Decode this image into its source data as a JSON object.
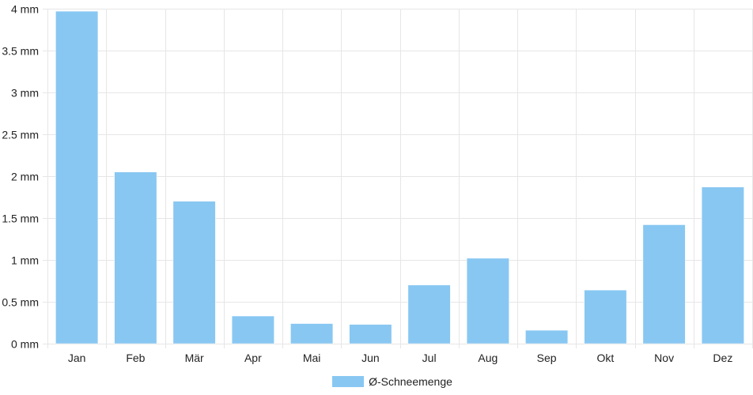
{
  "chart_data": {
    "type": "bar",
    "categories": [
      "Jan",
      "Feb",
      "Mär",
      "Apr",
      "Mai",
      "Jun",
      "Jul",
      "Aug",
      "Sep",
      "Okt",
      "Nov",
      "Dez"
    ],
    "series": [
      {
        "name": "Ø-Schneemenge",
        "values": [
          3.97,
          2.05,
          1.7,
          0.33,
          0.24,
          0.23,
          0.7,
          1.02,
          0.16,
          0.64,
          1.42,
          1.87
        ],
        "color": "#88c7f2"
      }
    ],
    "ylim": [
      0,
      4
    ],
    "yticks": [
      {
        "value": 0,
        "label": "0 mm"
      },
      {
        "value": 0.5,
        "label": "0.5 mm"
      },
      {
        "value": 1,
        "label": "1 mm"
      },
      {
        "value": 1.5,
        "label": "1.5 mm"
      },
      {
        "value": 2,
        "label": "2 mm"
      },
      {
        "value": 2.5,
        "label": "2.5 mm"
      },
      {
        "value": 3,
        "label": "3 mm"
      },
      {
        "value": 3.5,
        "label": "3.5 mm"
      },
      {
        "value": 4,
        "label": "4 mm"
      }
    ],
    "grid": true,
    "legend": "bottom-center",
    "gridColor": "#e6e6e6"
  }
}
